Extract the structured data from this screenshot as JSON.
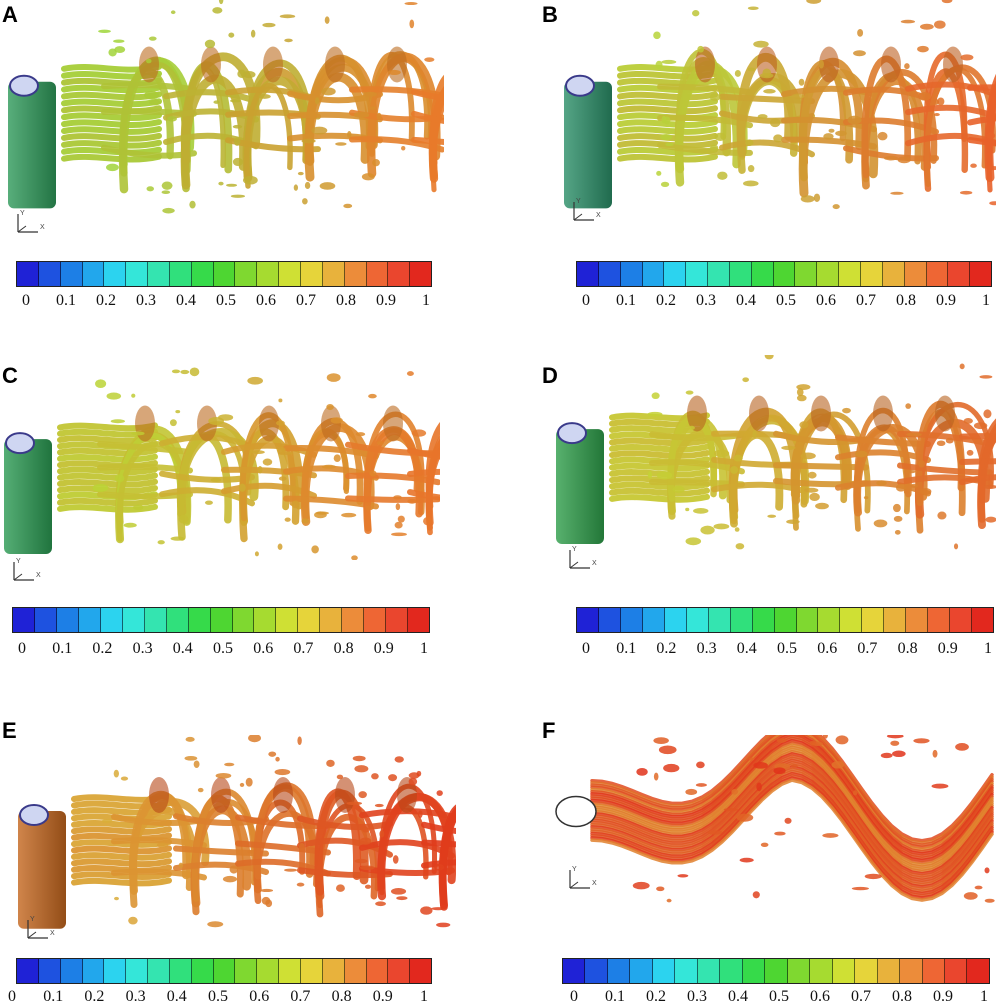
{
  "panels": [
    {
      "label": "A",
      "cylinder_color": "#2e9a5a",
      "wake_start": "#9bdc3a",
      "wake_end": "#e87a2a"
    },
    {
      "label": "B",
      "cylinder_color": "#2a8f68",
      "wake_start": "#b5d93a",
      "wake_end": "#e8622a"
    },
    {
      "label": "C",
      "cylinder_color": "#2b9a52",
      "wake_start": "#b8da36",
      "wake_end": "#e8742a"
    },
    {
      "label": "D",
      "cylinder_color": "#2e9e4a",
      "wake_start": "#c2d836",
      "wake_end": "#e2682a"
    },
    {
      "label": "E",
      "cylinder_color": "#c4661e",
      "wake_start": "#d9b23a",
      "wake_end": "#e03c1c"
    },
    {
      "label": "F",
      "cylinder_color": "#ffffff",
      "wake_start": "#e0b83a",
      "wake_end": "#e0321a"
    }
  ],
  "colorbar": {
    "ticks": [
      "0",
      "0.1",
      "0.2",
      "0.3",
      "0.4",
      "0.5",
      "0.6",
      "0.7",
      "0.8",
      "0.9",
      "1"
    ],
    "colors": [
      "#1f22d6",
      "#1e52e0",
      "#1d7fe6",
      "#22a7ec",
      "#2cd3ef",
      "#34e6d9",
      "#34e4b0",
      "#30e07c",
      "#36da4a",
      "#4ed632",
      "#7fd830",
      "#a6db30",
      "#cfe034",
      "#e6d43a",
      "#e8b23c",
      "#ec8c3a",
      "#ee6634",
      "#ea462e",
      "#e2281e"
    ]
  },
  "axis_labels": {
    "x": "X",
    "y": "Y"
  }
}
